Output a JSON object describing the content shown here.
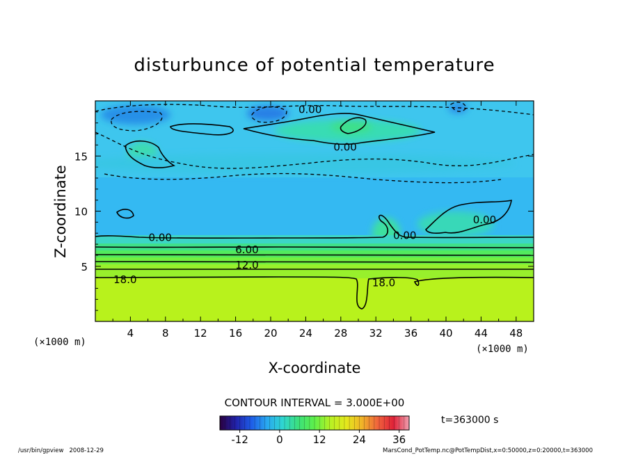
{
  "chart_data": {
    "type": "heatmap",
    "title": "disturbunce of potential temperature",
    "xlabel": "X-coordinate",
    "ylabel": "Z-coordinate",
    "x_unit": "(×1000 m)",
    "y_unit": "(×1000 m)",
    "xlim": [
      0,
      50
    ],
    "ylim": [
      0,
      20
    ],
    "x_ticks": [
      4,
      8,
      12,
      16,
      20,
      24,
      28,
      32,
      36,
      40,
      44,
      48
    ],
    "y_ticks": [
      5,
      10,
      15
    ],
    "contour_interval": "CONTOUR INTERVAL = 3.000E+00",
    "time_label": "t=363000 s",
    "colorbar": {
      "min": -18,
      "max": 39,
      "ticks": [
        -12,
        0,
        12,
        24,
        36
      ],
      "stops": [
        "#2a003f",
        "#2121a8",
        "#1e5de8",
        "#29a9f0",
        "#2fd6d0",
        "#3ce07a",
        "#5ef04a",
        "#b6f024",
        "#e4e81c",
        "#f0b428",
        "#f0643c",
        "#e02238",
        "#f0a0b0"
      ]
    },
    "contour_labels": [
      {
        "text": "0.00",
        "x": 24.5,
        "z": 19.2
      },
      {
        "text": "0.00",
        "x": 28.5,
        "z": 15.8
      },
      {
        "text": "0.00",
        "x": 7.4,
        "z": 7.6
      },
      {
        "text": "0.00",
        "x": 35.3,
        "z": 7.8
      },
      {
        "text": "0.00",
        "x": 44.4,
        "z": 9.2
      },
      {
        "text": "6.00",
        "x": 17.3,
        "z": 6.5
      },
      {
        "text": "12.0",
        "x": 17.3,
        "z": 5.1
      },
      {
        "text": "18.0",
        "x": 3.4,
        "z": 3.8
      },
      {
        "text": "18.0",
        "x": 32.9,
        "z": 3.5
      }
    ],
    "levels": [
      {
        "z": 7.5,
        "value": 0
      },
      {
        "z": 6.3,
        "value": 6
      },
      {
        "z": 5.6,
        "value": 9
      },
      {
        "z": 4.9,
        "value": 12
      },
      {
        "z": 4.3,
        "value": 15
      },
      {
        "z": 3.9,
        "value": 18
      }
    ]
  },
  "footer": {
    "left": "/usr/bin/gpview   2008-12-29",
    "right": "MarsCond_PotTemp.nc@PotTempDist,x=0:50000,z=0:20000,t=363000"
  }
}
